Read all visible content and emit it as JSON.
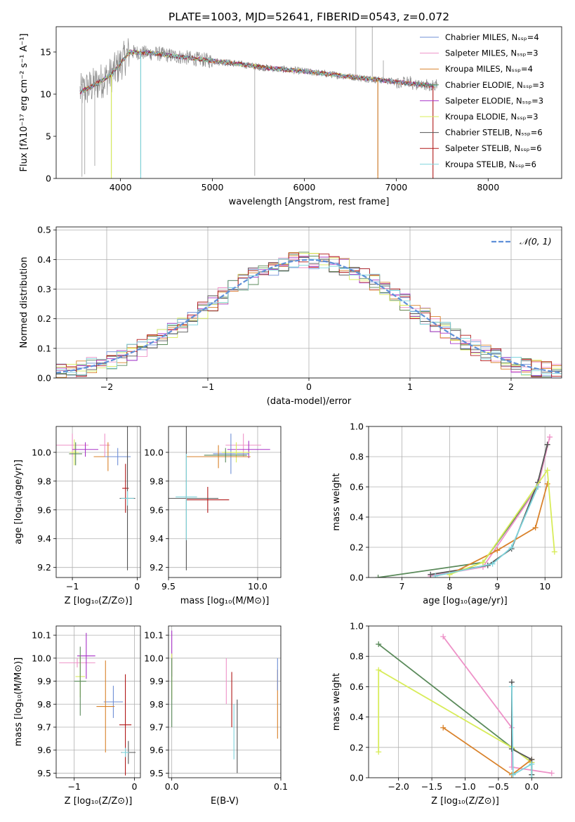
{
  "title": "PLATE=1003, MJD=52641, FIBERID=0543, z=0.072",
  "colors": {
    "chabrier_miles": "#6f8fd6",
    "salpeter_miles": "#ee92c8",
    "kroupa_miles": "#d9822b",
    "chabrier_elodie": "#5a8a5a",
    "salpeter_elodie": "#a832c8",
    "kroupa_elodie": "#d8ec5a",
    "chabrier_stelib": "#555555",
    "salpeter_stelib": "#b01818",
    "kroupa_stelib": "#7fd4dc",
    "data": "#888888",
    "normal": "#6090d8"
  },
  "chart_data": [
    {
      "id": "spectrum",
      "type": "line",
      "xlabel": "wavelength [Angstrom, rest frame]",
      "ylabel": "Flux [fλ10⁻¹⁷ erg cm⁻² s⁻¹ A⁻¹]",
      "xlim": [
        3300,
        8800
      ],
      "ylim": [
        0,
        18
      ],
      "xticks": [
        "4000",
        "5000",
        "6000",
        "7000",
        "8000"
      ],
      "yticks": [
        "0",
        "5",
        "10",
        "15"
      ],
      "legend_position": "top-right",
      "legend": [
        "Chabrier MILES, Nₛₛₚ=4",
        "Salpeter MILES, Nₛₛₚ=3",
        "Kroupa MILES, Nₛₛₚ=4",
        "Chabrier ELODIE, Nₛₛₚ=3",
        "Salpeter ELODIE, Nₛₛₚ=3",
        "Kroupa ELODIE, Nₛₛₚ=3",
        "Chabrier STELIB, Nₛₛₚ=6",
        "Salpeter STELIB, Nₛₛₚ=6",
        "Kroupa STELIB, Nₛₛₚ=6"
      ],
      "continuum": {
        "x": [
          3550,
          3700,
          3900,
          4100,
          4400,
          4800,
          5200,
          5600,
          6000,
          6400,
          6800,
          7200,
          7500
        ],
        "y": [
          10.2,
          11.0,
          12.3,
          15.0,
          14.8,
          14.2,
          13.7,
          13.1,
          12.7,
          12.2,
          11.7,
          11.2,
          10.9
        ]
      }
    },
    {
      "id": "residuals",
      "type": "line",
      "xlabel": "(data-model)/error",
      "ylabel": "Normed distribution",
      "xlim": [
        -2.5,
        2.5
      ],
      "ylim": [
        0,
        0.51
      ],
      "xticks": [
        "−2",
        "−1",
        "0",
        "1",
        "2"
      ],
      "yticks": [
        "0.0",
        "0.1",
        "0.2",
        "0.3",
        "0.4",
        "0.5"
      ],
      "legend": [
        "𝒩(0, 1)"
      ],
      "legend_position": "top-right"
    },
    {
      "id": "age_vs_z",
      "type": "scatter",
      "xlabel": "Z [log₁₀(Z/Z⊙)]",
      "ylabel": "age  [log₁₀(age/yr)]",
      "xlim": [
        -1.25,
        0.05
      ],
      "ylim": [
        9.13,
        10.18
      ],
      "xticks": [
        "−1",
        "0"
      ],
      "yticks": [
        "9.2",
        "9.4",
        "9.6",
        "9.8",
        "10.0"
      ],
      "points": [
        {
          "x": -1.0,
          "y": 10.05,
          "xerr": 0.25,
          "yerr": 0.08,
          "c": "salpeter_miles"
        },
        {
          "x": -0.97,
          "y": 10.0,
          "xerr": 0.07,
          "yerr": 0.09,
          "c": "kroupa_elodie"
        },
        {
          "x": -0.95,
          "y": 9.99,
          "xerr": 0.1,
          "yerr": 0.08,
          "c": "chabrier_elodie"
        },
        {
          "x": -0.8,
          "y": 10.02,
          "xerr": 0.2,
          "yerr": 0.05,
          "c": "salpeter_elodie"
        },
        {
          "x": -0.5,
          "y": 10.05,
          "xerr": 0.08,
          "yerr": 0.08,
          "c": "salpeter_miles"
        },
        {
          "x": -0.45,
          "y": 9.97,
          "xerr": 0.22,
          "yerr": 0.1,
          "c": "kroupa_miles"
        },
        {
          "x": -0.3,
          "y": 9.97,
          "xerr": 0.2,
          "yerr": 0.06,
          "c": "chabrier_miles"
        },
        {
          "x": -0.18,
          "y": 9.75,
          "xerr": 0.05,
          "yerr": 0.17,
          "c": "salpeter_stelib"
        },
        {
          "x": -0.15,
          "y": 9.68,
          "xerr": 0.12,
          "yerr": 0.5,
          "c": "chabrier_stelib"
        },
        {
          "x": -0.15,
          "y": 9.68,
          "xerr": 0.1,
          "yerr": 0.05,
          "c": "kroupa_stelib"
        }
      ]
    },
    {
      "id": "age_vs_mass",
      "type": "scatter",
      "xlabel": "mass [log₁₀(M/M⊙)]",
      "ylabel": "",
      "xlim": [
        9.5,
        10.13
      ],
      "ylim": [
        9.13,
        10.18
      ],
      "xticks": [
        "9.5",
        "10.0"
      ],
      "yticks": [
        "9.2",
        "9.4",
        "9.6",
        "9.8",
        "10.0"
      ],
      "points": [
        {
          "x": 9.92,
          "y": 10.05,
          "xerr": 0.1,
          "yerr": 0.08,
          "c": "salpeter_miles"
        },
        {
          "x": 9.95,
          "y": 10.02,
          "xerr": 0.12,
          "yerr": 0.06,
          "c": "salpeter_elodie"
        },
        {
          "x": 9.85,
          "y": 9.99,
          "xerr": 0.1,
          "yerr": 0.14,
          "c": "chabrier_miles"
        },
        {
          "x": 9.88,
          "y": 10.0,
          "xerr": 0.08,
          "yerr": 0.07,
          "c": "kroupa_elodie"
        },
        {
          "x": 9.78,
          "y": 9.97,
          "xerr": 0.18,
          "yerr": 0.08,
          "c": "kroupa_miles"
        },
        {
          "x": 9.82,
          "y": 9.98,
          "xerr": 0.12,
          "yerr": 0.05,
          "c": "chabrier_elodie"
        },
        {
          "x": 9.72,
          "y": 9.67,
          "xerr": 0.12,
          "yerr": 0.09,
          "c": "salpeter_stelib"
        },
        {
          "x": 9.6,
          "y": 9.68,
          "xerr": 0.18,
          "yerr": 0.5,
          "c": "chabrier_stelib"
        },
        {
          "x": 9.6,
          "y": 9.69,
          "xerr": 0.06,
          "yerr": 0.3,
          "c": "kroupa_stelib"
        }
      ]
    },
    {
      "id": "mass_weight_vs_age",
      "type": "line",
      "xlabel": "age  [log₁₀(age/yr)]",
      "ylabel": "mass weight",
      "xlim": [
        6.3,
        10.35
      ],
      "ylim": [
        0,
        1
      ],
      "xticks": [
        "7",
        "8",
        "9",
        "10"
      ],
      "yticks": [
        "0.0",
        "0.2",
        "0.4",
        "0.6",
        "0.8",
        "1.0"
      ],
      "series": [
        {
          "c": "chabrier_elodie",
          "x": [
            6.5,
            8.7,
            9.85,
            10.05
          ],
          "y": [
            0.0,
            0.1,
            0.6,
            0.88
          ]
        },
        {
          "c": "salpeter_miles",
          "x": [
            7.6,
            8.7,
            9.85,
            10.1
          ],
          "y": [
            0.01,
            0.07,
            0.6,
            0.93
          ]
        },
        {
          "c": "chabrier_stelib",
          "x": [
            7.6,
            8.8,
            9.3,
            9.85,
            10.05
          ],
          "y": [
            0.02,
            0.08,
            0.19,
            0.63,
            0.88
          ]
        },
        {
          "c": "kroupa_miles",
          "x": [
            8.0,
            9.0,
            9.8,
            10.05
          ],
          "y": [
            0.02,
            0.18,
            0.33,
            0.62
          ]
        },
        {
          "c": "kroupa_elodie",
          "x": [
            8.0,
            8.7,
            10.05,
            10.2
          ],
          "y": [
            0.02,
            0.1,
            0.71,
            0.17
          ]
        },
        {
          "c": "kroupa_stelib",
          "x": [
            7.7,
            8.9,
            9.3,
            9.85
          ],
          "y": [
            0.01,
            0.09,
            0.2,
            0.6
          ]
        }
      ]
    },
    {
      "id": "mass_vs_z",
      "type": "scatter",
      "xlabel": "Z [log₁₀(Z/Z⊙)]",
      "ylabel": "mass [log₁₀(M/M⊙)]",
      "xlim": [
        -1.3,
        0.1
      ],
      "ylim": [
        9.48,
        10.14
      ],
      "xticks": [
        "−1",
        "0"
      ],
      "yticks": [
        "9.5",
        "9.6",
        "9.7",
        "9.8",
        "9.9",
        "10.0",
        "10.1"
      ],
      "points": [
        {
          "x": -0.95,
          "y": 9.98,
          "xerr": 0.3,
          "yerr": 0.02,
          "c": "salpeter_miles"
        },
        {
          "x": -0.8,
          "y": 10.01,
          "xerr": 0.15,
          "yerr": 0.1,
          "c": "salpeter_elodie"
        },
        {
          "x": -0.9,
          "y": 9.92,
          "xerr": 0.08,
          "yerr": 0.09,
          "c": "kroupa_elodie"
        },
        {
          "x": -0.9,
          "y": 9.9,
          "xerr": 0.1,
          "yerr": 0.15,
          "c": "chabrier_elodie"
        },
        {
          "x": -0.35,
          "y": 9.81,
          "xerr": 0.16,
          "yerr": 0.07,
          "c": "chabrier_miles"
        },
        {
          "x": -0.48,
          "y": 9.79,
          "xerr": 0.15,
          "yerr": 0.2,
          "c": "kroupa_miles"
        },
        {
          "x": -0.15,
          "y": 9.71,
          "xerr": 0.1,
          "yerr": 0.22,
          "c": "salpeter_stelib"
        },
        {
          "x": -0.1,
          "y": 9.59,
          "xerr": 0.12,
          "yerr": 0.05,
          "c": "chabrier_stelib"
        },
        {
          "x": -0.15,
          "y": 9.59,
          "xerr": 0.06,
          "yerr": 0.02,
          "c": "kroupa_stelib"
        }
      ]
    },
    {
      "id": "mass_vs_ebv",
      "type": "scatter",
      "xlabel": "E(B-V)",
      "ylabel": "",
      "xlim": [
        -0.003,
        0.1
      ],
      "ylim": [
        9.48,
        10.14
      ],
      "xticks": [
        "0.0",
        "0.1"
      ],
      "yticks": [
        "9.5",
        "9.6",
        "9.7",
        "9.8",
        "9.9",
        "10.0",
        "10.1"
      ],
      "points": [
        {
          "x": 0.0,
          "y": 10.02,
          "xerr": 0,
          "yerr": 0.1,
          "c": "salpeter_elodie"
        },
        {
          "x": 0.0,
          "y": 9.92,
          "xerr": 0,
          "yerr": 0.1,
          "c": "kroupa_elodie"
        },
        {
          "x": 0.0,
          "y": 9.85,
          "xerr": 0,
          "yerr": 0.15,
          "c": "chabrier_elodie"
        },
        {
          "x": 0.05,
          "y": 9.9,
          "xerr": 0,
          "yerr": 0.1,
          "c": "salpeter_miles"
        },
        {
          "x": 0.055,
          "y": 9.82,
          "xerr": 0,
          "yerr": 0.12,
          "c": "salpeter_stelib"
        },
        {
          "x": 0.057,
          "y": 9.68,
          "xerr": 0,
          "yerr": 0.12,
          "c": "kroupa_stelib"
        },
        {
          "x": 0.06,
          "y": 9.66,
          "xerr": 0,
          "yerr": 0.16,
          "c": "chabrier_stelib"
        },
        {
          "x": 0.097,
          "y": 9.8,
          "xerr": 0,
          "yerr": 0.15,
          "c": "kroupa_miles"
        },
        {
          "x": 0.097,
          "y": 9.93,
          "xerr": 0,
          "yerr": 0.07,
          "c": "chabrier_miles"
        }
      ]
    },
    {
      "id": "mass_weight_vs_z",
      "type": "line",
      "xlabel": "Z [log₁₀(Z/Z⊙)]",
      "ylabel": "mass weight",
      "xlim": [
        -2.45,
        0.45
      ],
      "ylim": [
        0,
        1
      ],
      "xticks": [
        "−2.0",
        "−1.5",
        "−1.0",
        "−0.5",
        "0.0"
      ],
      "yticks": [
        "0.0",
        "0.2",
        "0.4",
        "0.6",
        "0.8",
        "1.0"
      ],
      "series": [
        {
          "c": "chabrier_elodie",
          "x": [
            -2.3,
            -0.3,
            0.0
          ],
          "y": [
            0.88,
            0.2,
            0.1
          ]
        },
        {
          "c": "kroupa_elodie",
          "x": [
            -2.3,
            -2.3,
            -0.3,
            0.0
          ],
          "y": [
            0.17,
            0.71,
            0.2,
            0.1
          ]
        },
        {
          "c": "salpeter_miles",
          "x": [
            -1.33,
            -0.3,
            -0.3,
            0.3
          ],
          "y": [
            0.93,
            0.33,
            0.07,
            0.03
          ]
        },
        {
          "c": "kroupa_miles",
          "x": [
            -1.33,
            -0.3,
            0.0,
            0.0
          ],
          "y": [
            0.33,
            0.02,
            0.12,
            0.0
          ]
        },
        {
          "c": "chabrier_stelib",
          "x": [
            -0.3,
            -0.3,
            0.0,
            0.0
          ],
          "y": [
            0.63,
            0.19,
            0.12,
            0.02
          ]
        },
        {
          "c": "kroupa_stelib",
          "x": [
            -0.3,
            -0.28,
            0.0,
            0.0
          ],
          "y": [
            0.6,
            0.02,
            0.09,
            0.0
          ]
        }
      ]
    }
  ]
}
